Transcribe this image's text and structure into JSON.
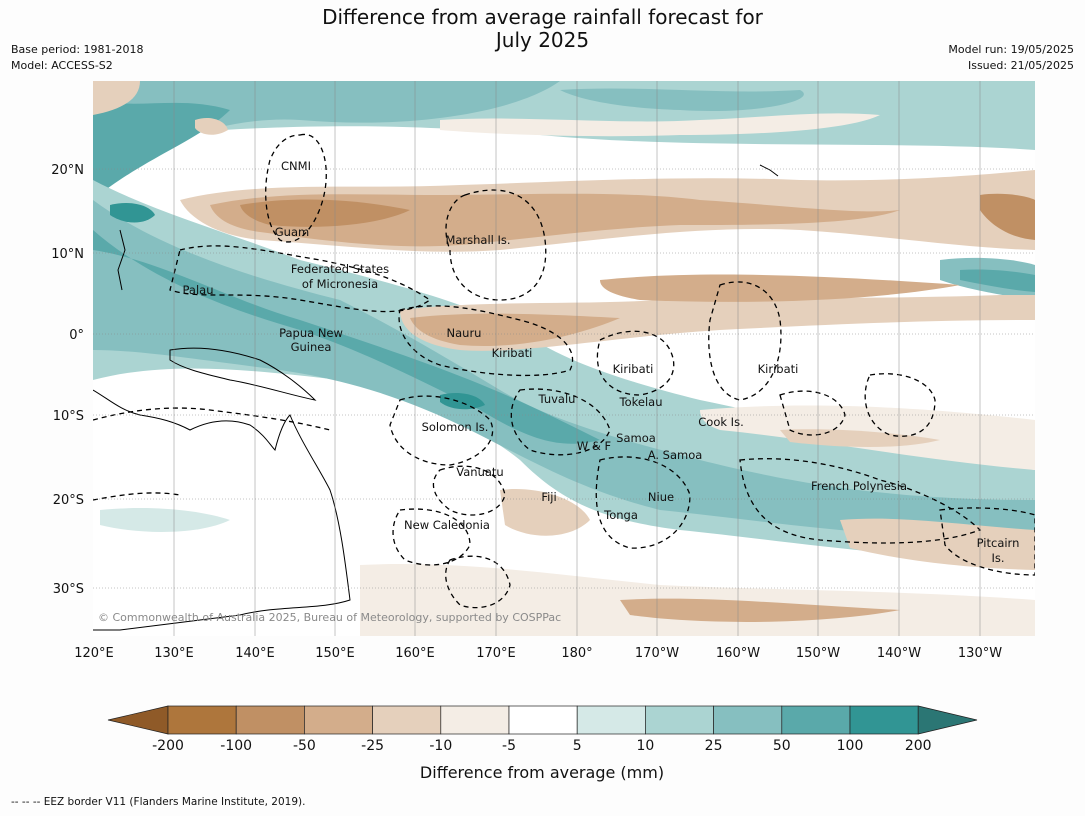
{
  "title_line1": "Difference from average rainfall forecast for",
  "title_line2": "July 2025",
  "left_meta": {
    "base_period": "Base period: 1981-2018",
    "model": "Model: ACCESS-S2"
  },
  "right_meta": {
    "model_run": "Model run: 19/05/2025",
    "issued": "Issued: 21/05/2025"
  },
  "map": {
    "lat_labels": [
      "20°N",
      "10°N",
      "0°",
      "10°S",
      "20°S",
      "30°S"
    ],
    "lon_labels": [
      "120°E",
      "130°E",
      "140°E",
      "150°E",
      "160°E",
      "170°E",
      "180°",
      "170°W",
      "160°W",
      "150°W",
      "140°W",
      "130°W"
    ],
    "region_labels": [
      "CNMI",
      "Guam",
      "Marshall Is.",
      "Federated States",
      "of Micronesia",
      "Palau",
      "Papua New",
      "Guinea",
      "Nauru",
      "Kiribati",
      "Kiribati",
      "Kiribati",
      "Tuvalu",
      "Tokelau",
      "Cook Is.",
      "Solomon Is.",
      "Samoa",
      "W & F",
      "A. Samoa",
      "Vanuatu",
      "Fiji",
      "Niue",
      "Tonga",
      "French Polynesia",
      "New Caledonia",
      "Pitcairn",
      "Is."
    ],
    "copyright": "© Commonwealth of Australia 2025, Bureau of Meteorology, supported by COSPPac"
  },
  "colorbar": {
    "tick_labels": [
      "-200",
      "-100",
      "-50",
      "-25",
      "-10",
      "-5",
      "5",
      "10",
      "25",
      "50",
      "100",
      "200"
    ],
    "label": "Difference from average (mm)",
    "colors": [
      "#8f5a28",
      "#ae763c",
      "#c09064",
      "#d3ad8b",
      "#e5d0bc",
      "#f4ede5",
      "#ffffff",
      "#d5e9e7",
      "#abd4d2",
      "#86bfc0",
      "#5aa9aa",
      "#319594",
      "#2b7674"
    ]
  },
  "footer": "--  --  -- EEZ border V11 (Flanders Marine Institute, 2019)."
}
